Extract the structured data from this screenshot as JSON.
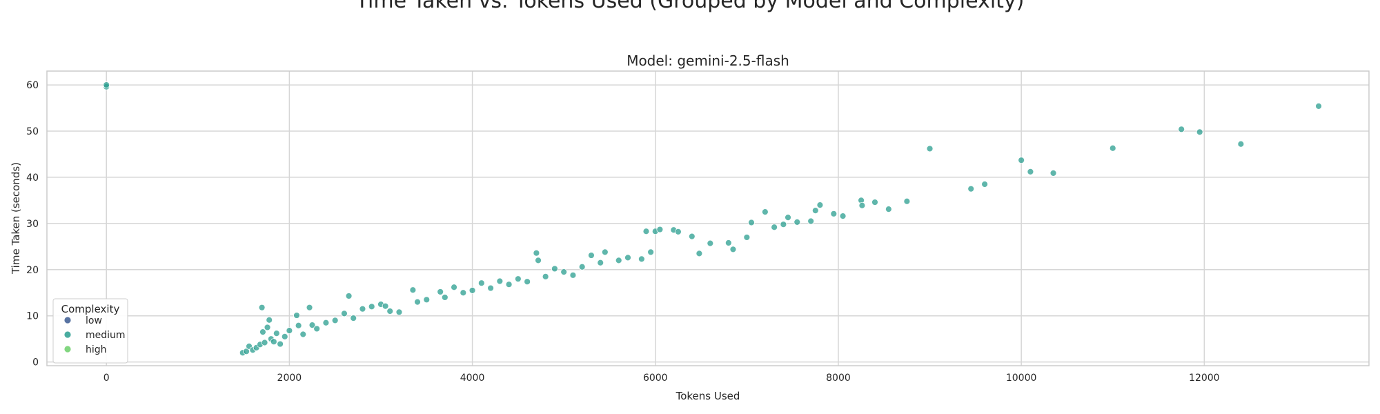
{
  "suptitle": "Time Taken vs. Tokens Used (Grouped by Model and Complexity)",
  "chart_data": {
    "type": "scatter",
    "title": "Model: gemini-2.5-flash",
    "xlabel": "Tokens Used",
    "ylabel": "Time Taken (seconds)",
    "xlim": [
      -650,
      13800
    ],
    "ylim": [
      -0.8,
      63
    ],
    "xticks": [
      0,
      2000,
      4000,
      6000,
      8000,
      10000,
      12000
    ],
    "yticks": [
      0,
      10,
      20,
      30,
      40,
      50,
      60
    ],
    "grid": true,
    "legend": {
      "title": "Complexity",
      "placement": "lower-left",
      "entries": [
        {
          "label": "low",
          "color": "#3b5b92"
        },
        {
          "label": "medium",
          "color": "#2a9d8f"
        },
        {
          "label": "high",
          "color": "#6ccf6a"
        }
      ]
    },
    "series": [
      {
        "name": "medium",
        "color": "#2a9d8f",
        "points": [
          [
            0,
            59.6
          ],
          [
            0,
            60.0
          ],
          [
            1490,
            2.0
          ],
          [
            1530,
            2.3
          ],
          [
            1560,
            3.4
          ],
          [
            1600,
            2.6
          ],
          [
            1640,
            3.1
          ],
          [
            1680,
            3.8
          ],
          [
            1700,
            11.8
          ],
          [
            1710,
            6.5
          ],
          [
            1730,
            4.2
          ],
          [
            1760,
            7.5
          ],
          [
            1780,
            9.1
          ],
          [
            1800,
            5.0
          ],
          [
            1830,
            4.4
          ],
          [
            1860,
            6.2
          ],
          [
            1900,
            3.9
          ],
          [
            1950,
            5.5
          ],
          [
            2000,
            6.8
          ],
          [
            2080,
            10.1
          ],
          [
            2100,
            7.9
          ],
          [
            2150,
            6.0
          ],
          [
            2220,
            11.8
          ],
          [
            2250,
            8.0
          ],
          [
            2300,
            7.2
          ],
          [
            2400,
            8.5
          ],
          [
            2500,
            9.0
          ],
          [
            2600,
            10.5
          ],
          [
            2650,
            14.3
          ],
          [
            2700,
            9.5
          ],
          [
            2800,
            11.5
          ],
          [
            2900,
            12.0
          ],
          [
            3000,
            12.5
          ],
          [
            3050,
            12.1
          ],
          [
            3100,
            11.0
          ],
          [
            3200,
            10.8
          ],
          [
            3350,
            15.6
          ],
          [
            3400,
            13.0
          ],
          [
            3500,
            13.5
          ],
          [
            3650,
            15.2
          ],
          [
            3700,
            14.0
          ],
          [
            3800,
            16.2
          ],
          [
            3900,
            15.0
          ],
          [
            4000,
            15.5
          ],
          [
            4100,
            17.1
          ],
          [
            4200,
            16.0
          ],
          [
            4300,
            17.5
          ],
          [
            4400,
            16.8
          ],
          [
            4500,
            18.0
          ],
          [
            4600,
            17.4
          ],
          [
            4700,
            23.6
          ],
          [
            4720,
            22.0
          ],
          [
            4800,
            18.5
          ],
          [
            4900,
            20.2
          ],
          [
            5000,
            19.5
          ],
          [
            5100,
            18.8
          ],
          [
            5200,
            20.6
          ],
          [
            5300,
            23.1
          ],
          [
            5400,
            21.5
          ],
          [
            5450,
            23.8
          ],
          [
            5600,
            22.0
          ],
          [
            5700,
            22.6
          ],
          [
            5850,
            22.3
          ],
          [
            5900,
            28.3
          ],
          [
            5950,
            23.8
          ],
          [
            6000,
            28.3
          ],
          [
            6050,
            28.7
          ],
          [
            6200,
            28.6
          ],
          [
            6250,
            28.2
          ],
          [
            6400,
            27.2
          ],
          [
            6480,
            23.5
          ],
          [
            6600,
            25.7
          ],
          [
            6800,
            25.8
          ],
          [
            6850,
            24.4
          ],
          [
            7000,
            27.0
          ],
          [
            7050,
            30.2
          ],
          [
            7200,
            32.5
          ],
          [
            7300,
            29.2
          ],
          [
            7400,
            29.8
          ],
          [
            7450,
            31.3
          ],
          [
            7550,
            30.3
          ],
          [
            7700,
            30.5
          ],
          [
            7750,
            32.8
          ],
          [
            7800,
            34.0
          ],
          [
            7950,
            32.1
          ],
          [
            8050,
            31.6
          ],
          [
            8250,
            35.0
          ],
          [
            8260,
            33.9
          ],
          [
            8400,
            34.6
          ],
          [
            8550,
            33.1
          ],
          [
            8750,
            34.8
          ],
          [
            9000,
            46.2
          ],
          [
            9450,
            37.5
          ],
          [
            9600,
            38.5
          ],
          [
            10000,
            43.7
          ],
          [
            10100,
            41.2
          ],
          [
            10350,
            40.9
          ],
          [
            11000,
            46.3
          ],
          [
            11750,
            50.4
          ],
          [
            11950,
            49.8
          ],
          [
            12400,
            47.2
          ],
          [
            13250,
            55.4
          ]
        ]
      }
    ]
  }
}
